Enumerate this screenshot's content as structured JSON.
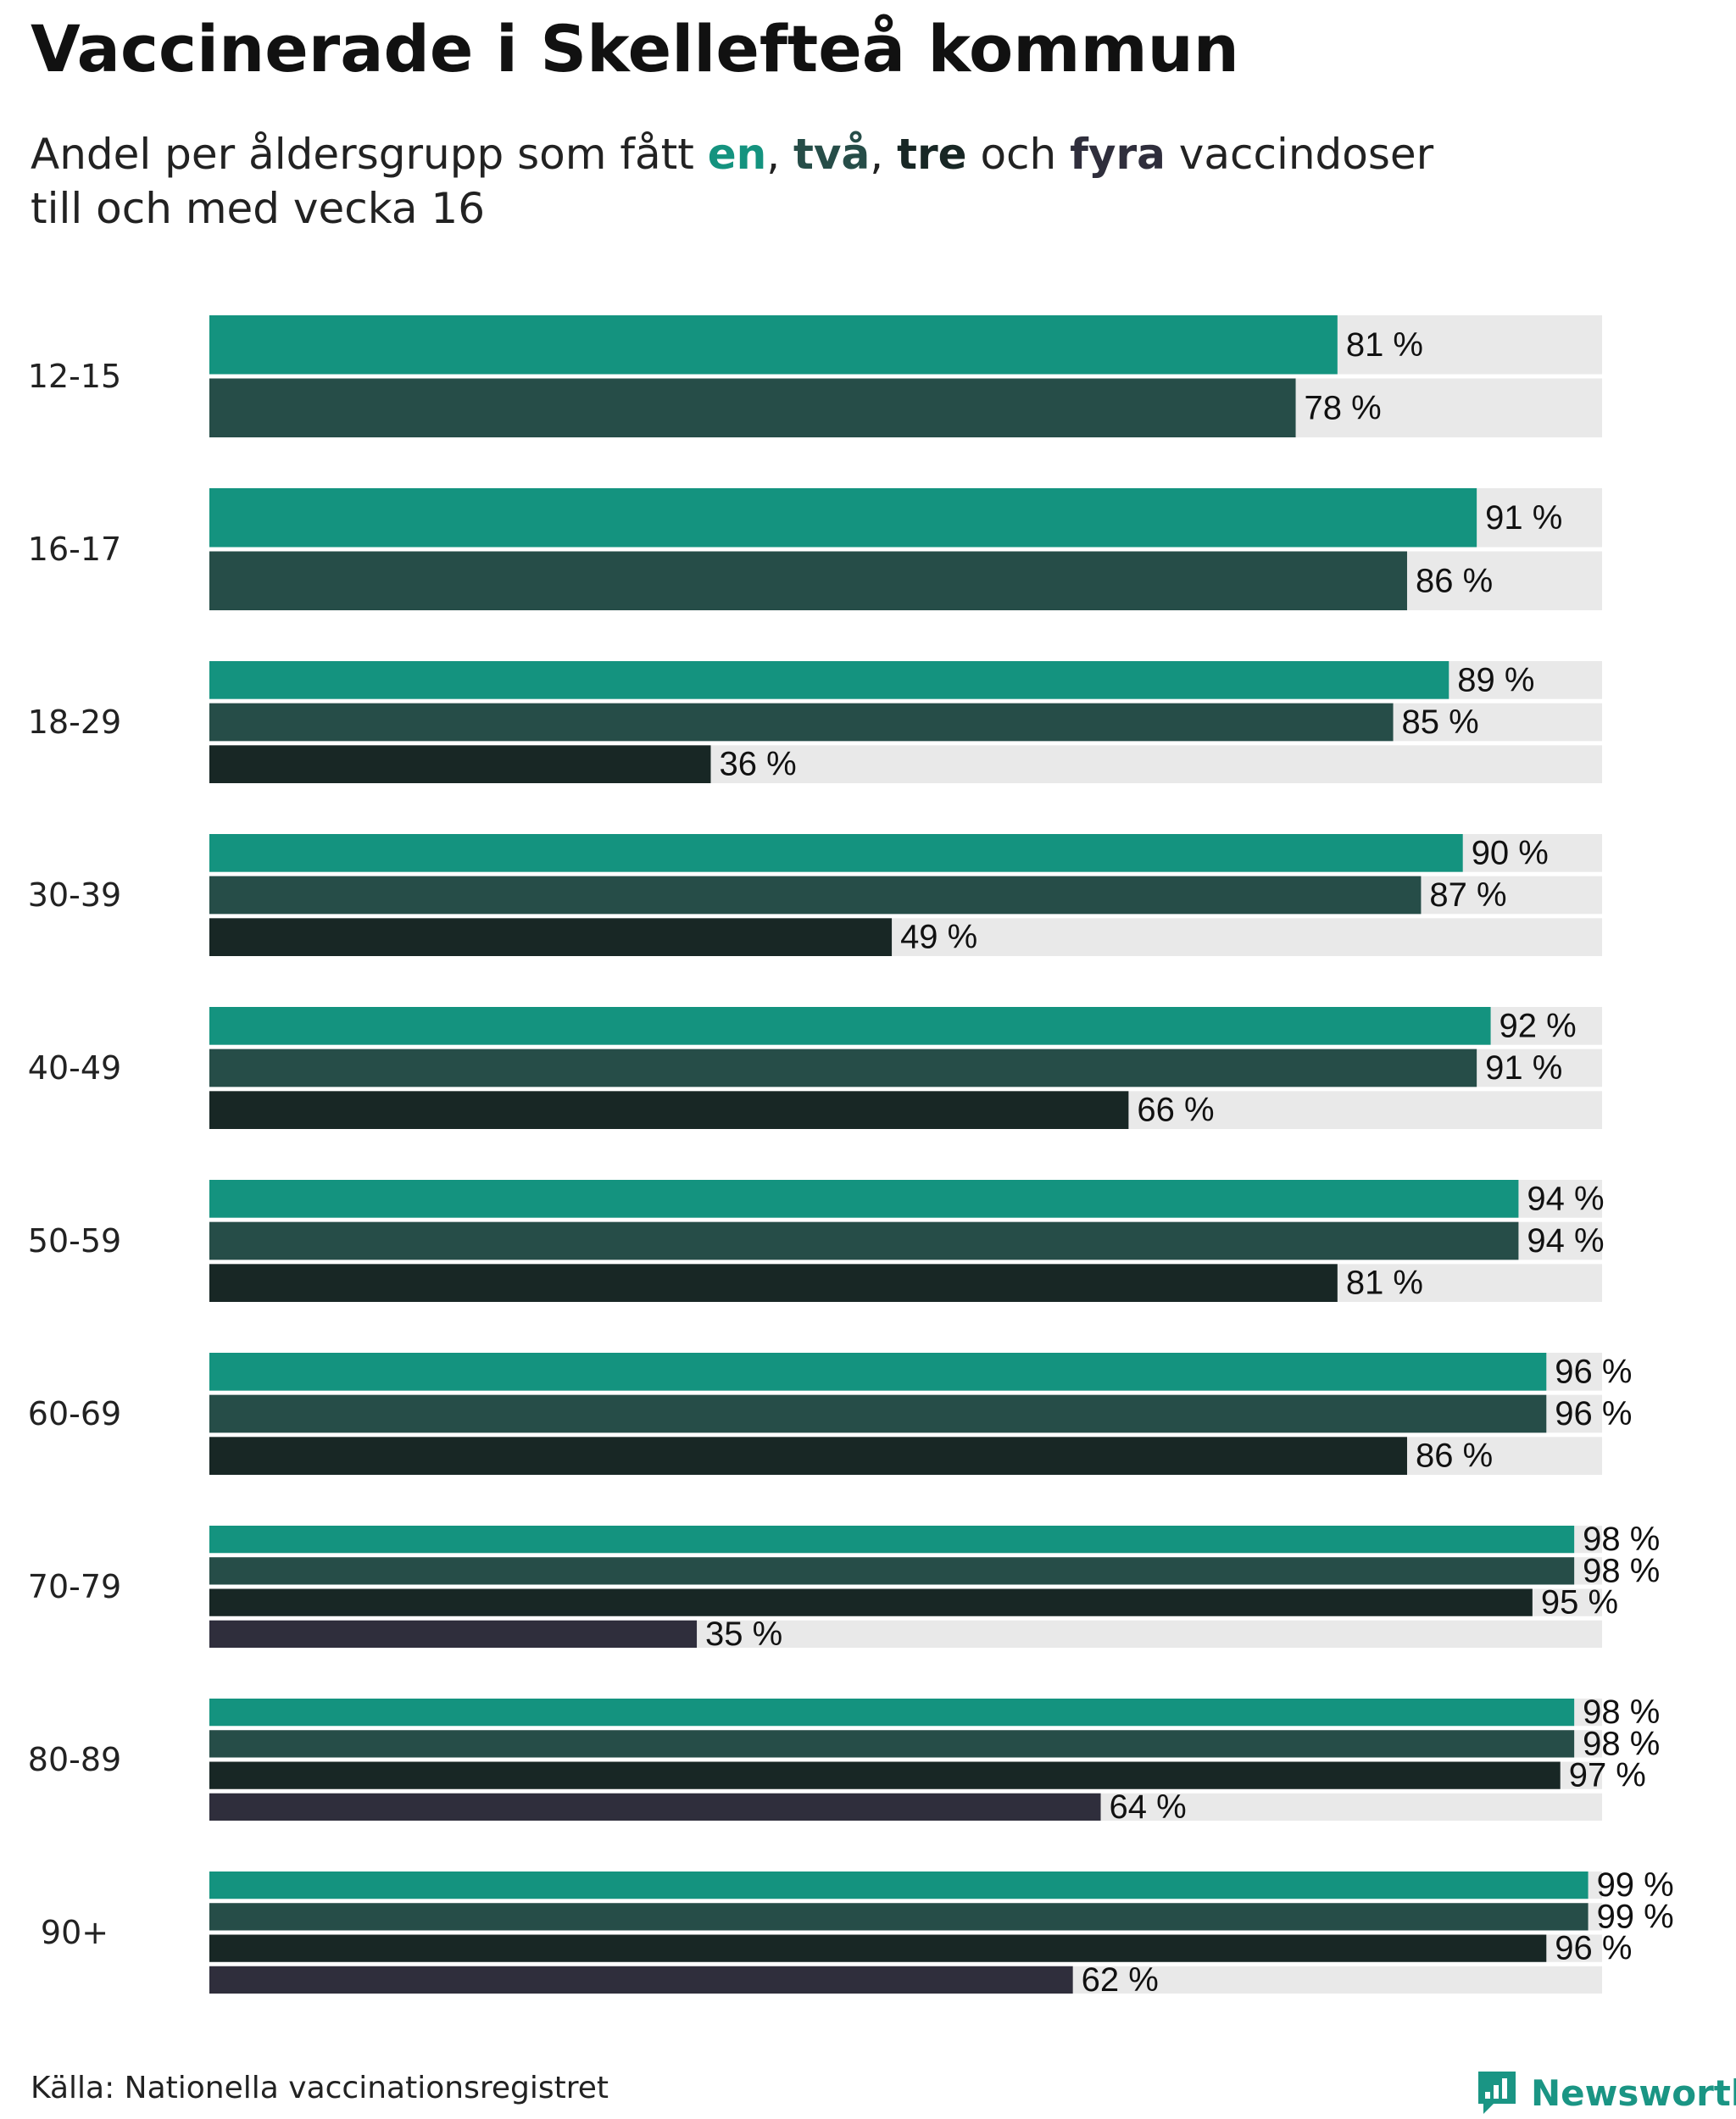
{
  "title": "Vaccinerade i Skellefteå kommun",
  "subtitle": {
    "prefix": "Andel per åldersgrupp som fått ",
    "dose1": "en",
    "sep1": ", ",
    "dose2": "två",
    "sep2": ", ",
    "dose3": "tre",
    "mid": " och ",
    "dose4": "fyra",
    "suffix": " vaccindoser",
    "line2": "till och med vecka 16"
  },
  "colors": {
    "dose1": "#14937f",
    "dose2": "#264d48",
    "dose3": "#182725",
    "dose4": "#2f2e3c",
    "track": "#e9e9e9"
  },
  "chart_data": {
    "type": "bar",
    "orientation": "horizontal",
    "title": "Vaccinerade i Skellefteå kommun",
    "xlim": [
      0,
      100
    ],
    "unit": "%",
    "categories": [
      "12-15",
      "16-17",
      "18-29",
      "30-39",
      "40-49",
      "50-59",
      "60-69",
      "70-79",
      "80-89",
      "90+"
    ],
    "series": [
      {
        "name": "en",
        "values": [
          81,
          91,
          89,
          90,
          92,
          94,
          96,
          98,
          98,
          99
        ]
      },
      {
        "name": "två",
        "values": [
          78,
          86,
          85,
          87,
          91,
          94,
          96,
          98,
          98,
          99
        ]
      },
      {
        "name": "tre",
        "values": [
          null,
          null,
          36,
          49,
          66,
          81,
          86,
          95,
          97,
          96
        ]
      },
      {
        "name": "fyra",
        "values": [
          null,
          null,
          null,
          null,
          null,
          null,
          null,
          35,
          64,
          62
        ]
      }
    ]
  },
  "footer": {
    "source": "Källa: Nationella vaccinationsregistret",
    "brand": "Newsworthy"
  }
}
